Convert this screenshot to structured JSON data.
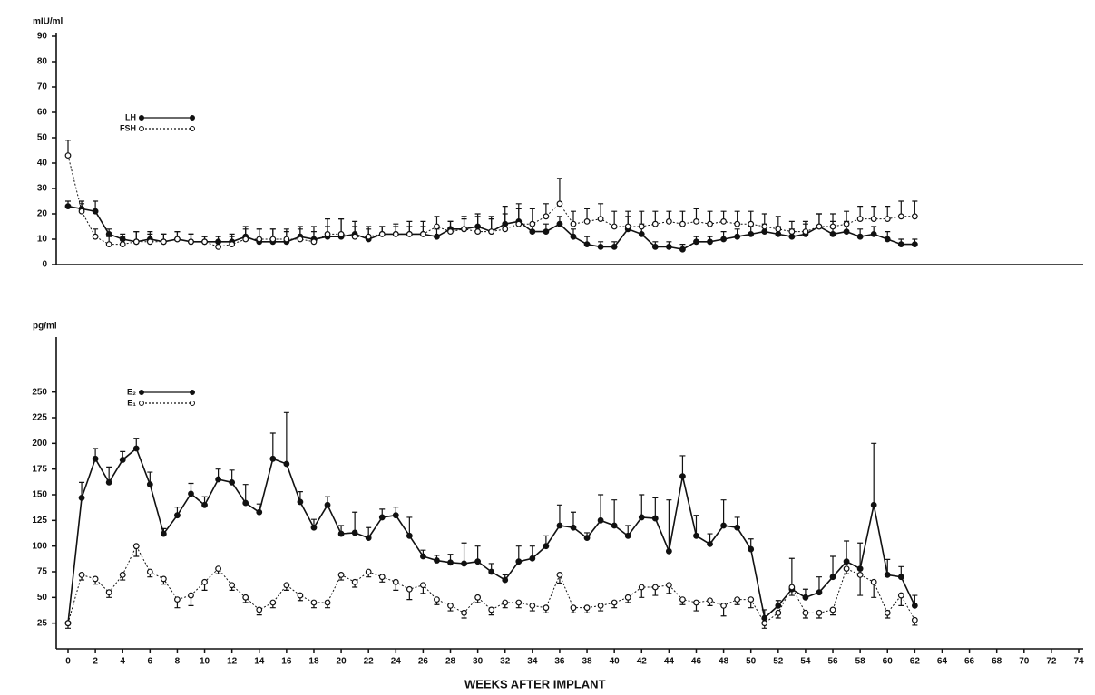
{
  "chart_data": [
    {
      "type": "line",
      "y_label": "mIU/ml",
      "legend": "upper left",
      "xlim": [
        0,
        74
      ],
      "ylim": [
        0,
        90
      ],
      "yticks": [
        0,
        10,
        20,
        30,
        40,
        50,
        60,
        70,
        80,
        90
      ],
      "x": [
        0,
        1,
        2,
        3,
        4,
        5,
        6,
        7,
        8,
        9,
        10,
        11,
        12,
        13,
        14,
        15,
        16,
        17,
        18,
        19,
        20,
        21,
        22,
        23,
        24,
        25,
        26,
        27,
        28,
        29,
        30,
        31,
        32,
        33,
        34,
        35,
        36,
        37,
        38,
        39,
        40,
        41,
        42,
        43,
        44,
        45,
        46,
        47,
        48,
        49,
        50,
        51,
        52,
        53,
        54,
        55,
        56,
        57,
        58,
        59,
        60,
        61,
        62
      ],
      "series": [
        {
          "name": "LH",
          "color": "#111111",
          "line_style": "solid",
          "marker": "filled",
          "error_direction": "up",
          "values": [
            23,
            22,
            21,
            12,
            10,
            9,
            10,
            9,
            10,
            9,
            9,
            9,
            9,
            11,
            9,
            9,
            9,
            11,
            10,
            11,
            11,
            12,
            10,
            12,
            12,
            12,
            12,
            11,
            14,
            14,
            15,
            13,
            16,
            17,
            13,
            13,
            16,
            11,
            8,
            7,
            7,
            14,
            12,
            7,
            7,
            6,
            9,
            9,
            10,
            11,
            12,
            13,
            12,
            11,
            12,
            15,
            12,
            13,
            11,
            12,
            10,
            8,
            8
          ],
          "errors": [
            2,
            3,
            4,
            2,
            2,
            4,
            3,
            3,
            3,
            3,
            2,
            2,
            3,
            4,
            5,
            5,
            4,
            4,
            5,
            4,
            7,
            5,
            4,
            3,
            3,
            3,
            3,
            3,
            3,
            4,
            5,
            5,
            7,
            7,
            3,
            3,
            3,
            3,
            3,
            2,
            2,
            5,
            4,
            2,
            2,
            2,
            2,
            2,
            3,
            3,
            3,
            3,
            3,
            3,
            4,
            5,
            5,
            4,
            3,
            3,
            3,
            2,
            2
          ]
        },
        {
          "name": "FSH",
          "color": "#111111",
          "line_style": "dotted",
          "marker": "open",
          "error_direction": "up",
          "values": [
            43,
            21,
            11,
            8,
            8,
            9,
            9,
            9,
            10,
            9,
            9,
            7,
            8,
            10,
            10,
            10,
            10,
            10,
            9,
            12,
            12,
            11,
            11,
            12,
            12,
            12,
            12,
            15,
            13,
            14,
            13,
            13,
            14,
            16,
            16,
            19,
            24,
            16,
            17,
            18,
            15,
            15,
            15,
            16,
            17,
            16,
            17,
            16,
            17,
            16,
            16,
            15,
            14,
            13,
            13,
            15,
            15,
            16,
            18,
            18,
            18,
            19,
            19
          ],
          "errors": [
            6,
            3,
            3,
            3,
            3,
            4,
            3,
            3,
            3,
            3,
            2,
            2,
            3,
            4,
            4,
            4,
            4,
            4,
            4,
            6,
            6,
            4,
            4,
            3,
            4,
            5,
            5,
            4,
            4,
            5,
            6,
            6,
            6,
            6,
            6,
            5,
            10,
            5,
            5,
            6,
            6,
            6,
            6,
            5,
            4,
            5,
            5,
            5,
            4,
            5,
            5,
            5,
            5,
            4,
            4,
            5,
            5,
            5,
            5,
            5,
            5,
            6,
            6
          ]
        }
      ]
    },
    {
      "type": "line",
      "y_label": "pg/ml",
      "x_label": "WEEKS AFTER IMPLANT",
      "legend": "upper left",
      "xlim": [
        0,
        74
      ],
      "ylim": [
        0,
        300
      ],
      "yticks": [
        25,
        50,
        75,
        100,
        125,
        150,
        175,
        200,
        225,
        250
      ],
      "xticks": [
        0,
        2,
        4,
        6,
        8,
        10,
        12,
        14,
        16,
        18,
        20,
        22,
        24,
        26,
        28,
        30,
        32,
        34,
        36,
        38,
        40,
        42,
        44,
        46,
        48,
        50,
        52,
        54,
        56,
        58,
        60,
        62,
        64,
        66,
        68,
        70,
        72,
        74
      ],
      "x": [
        0,
        1,
        2,
        3,
        4,
        5,
        6,
        7,
        8,
        9,
        10,
        11,
        12,
        13,
        14,
        15,
        16,
        17,
        18,
        19,
        20,
        21,
        22,
        23,
        24,
        25,
        26,
        27,
        28,
        29,
        30,
        31,
        32,
        33,
        34,
        35,
        36,
        37,
        38,
        39,
        40,
        41,
        42,
        43,
        44,
        45,
        46,
        47,
        48,
        49,
        50,
        51,
        52,
        53,
        54,
        55,
        56,
        57,
        58,
        59,
        60,
        61,
        62
      ],
      "series": [
        {
          "name": "E₂",
          "color": "#111111",
          "line_style": "solid",
          "marker": "filled",
          "error_direction": "up",
          "values": [
            25,
            147,
            185,
            162,
            184,
            195,
            160,
            112,
            130,
            151,
            140,
            165,
            162,
            142,
            133,
            185,
            180,
            143,
            118,
            140,
            112,
            113,
            108,
            128,
            130,
            110,
            90,
            86,
            84,
            83,
            85,
            75,
            67,
            85,
            88,
            100,
            120,
            118,
            108,
            125,
            120,
            110,
            128,
            127,
            95,
            168,
            110,
            102,
            120,
            118,
            97,
            30,
            42,
            58,
            50,
            55,
            70,
            85,
            78,
            140,
            72,
            70,
            42
          ],
          "errors": [
            0,
            15,
            10,
            15,
            8,
            10,
            12,
            5,
            8,
            10,
            8,
            10,
            12,
            18,
            8,
            25,
            50,
            10,
            8,
            8,
            8,
            20,
            10,
            8,
            8,
            18,
            6,
            5,
            8,
            20,
            15,
            8,
            5,
            15,
            12,
            10,
            20,
            15,
            5,
            25,
            25,
            10,
            22,
            20,
            50,
            20,
            20,
            10,
            25,
            10,
            10,
            8,
            5,
            30,
            8,
            15,
            20,
            20,
            25,
            60,
            15,
            10,
            10
          ]
        },
        {
          "name": "E₁",
          "color": "#111111",
          "line_style": "dotted",
          "marker": "open",
          "error_direction": "down",
          "values": [
            25,
            72,
            68,
            55,
            72,
            100,
            75,
            68,
            48,
            52,
            65,
            78,
            62,
            50,
            38,
            45,
            62,
            52,
            45,
            45,
            72,
            65,
            75,
            70,
            65,
            58,
            62,
            48,
            42,
            35,
            50,
            38,
            45,
            45,
            42,
            40,
            72,
            40,
            40,
            42,
            45,
            50,
            60,
            60,
            62,
            48,
            45,
            47,
            42,
            48,
            48,
            25,
            35,
            60,
            35,
            35,
            38,
            78,
            72,
            65,
            35,
            52,
            28
          ],
          "errors": [
            5,
            5,
            5,
            5,
            5,
            10,
            5,
            5,
            8,
            10,
            8,
            5,
            5,
            5,
            5,
            5,
            5,
            5,
            5,
            5,
            5,
            5,
            5,
            5,
            8,
            10,
            8,
            5,
            5,
            5,
            5,
            5,
            5,
            5,
            5,
            5,
            8,
            5,
            5,
            5,
            5,
            5,
            10,
            8,
            8,
            5,
            8,
            5,
            10,
            5,
            8,
            5,
            5,
            8,
            5,
            5,
            5,
            5,
            20,
            15,
            5,
            10,
            5
          ]
        }
      ]
    }
  ]
}
